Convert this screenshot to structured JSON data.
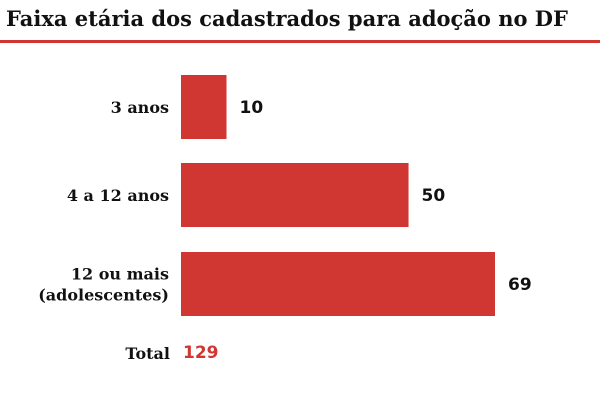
{
  "chart_data": {
    "type": "bar",
    "orientation": "horizontal",
    "title": "Faixa etária dos cadastrados para adoção no DF",
    "categories": [
      [
        "3 anos"
      ],
      [
        "4 a 12 anos"
      ],
      [
        "12 ou mais",
        "(adolescentes)"
      ]
    ],
    "values": [
      10,
      50,
      69
    ],
    "xlabel": "",
    "ylabel": "",
    "xlim": [
      0,
      69
    ],
    "grid": false,
    "legend": "none",
    "total": {
      "label": "Total",
      "value": "129"
    }
  },
  "colors": {
    "bar": "#d03632",
    "rule": "#d03632",
    "total_value": "#d03632"
  }
}
